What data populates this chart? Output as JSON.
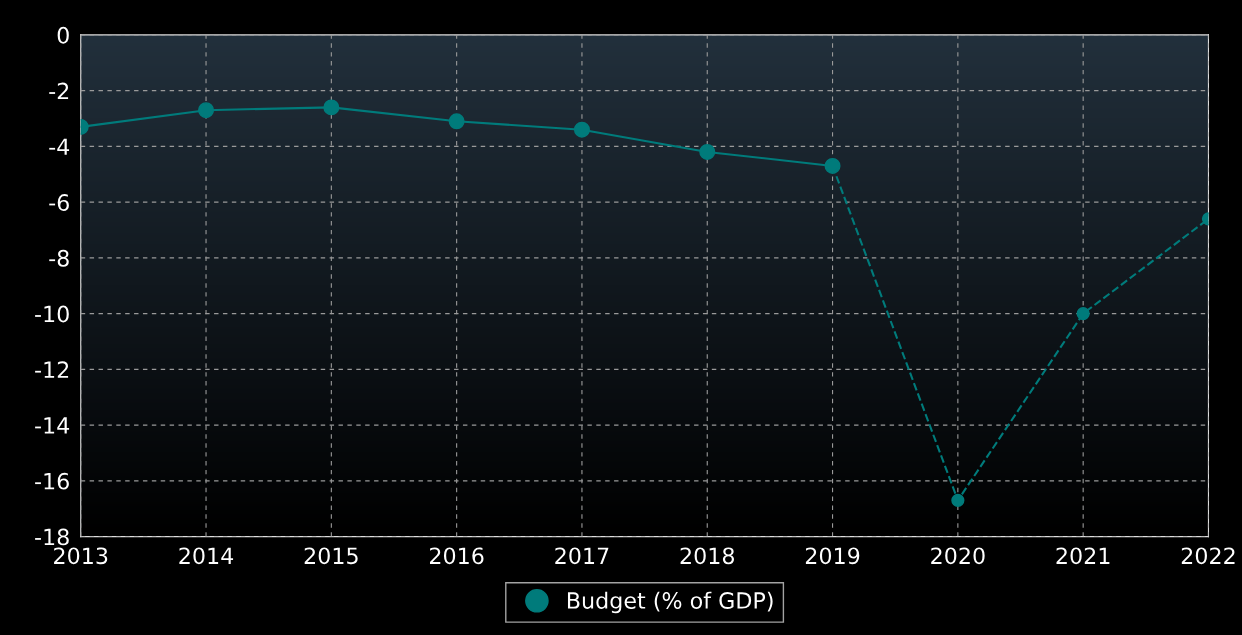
{
  "chart_data": {
    "type": "line",
    "x": [
      2013,
      2014,
      2015,
      2016,
      2017,
      2018,
      2019,
      2020,
      2021,
      2022
    ],
    "series": [
      {
        "name": "Budget (% of GDP)",
        "color": "#007b7b",
        "values": [
          -3.3,
          -2.7,
          -2.6,
          -3.1,
          -3.4,
          -4.2,
          -4.7,
          null,
          null,
          null
        ],
        "line_style": "solid"
      },
      {
        "color": "#007b7b",
        "values": [
          null,
          null,
          null,
          null,
          null,
          null,
          -4.7,
          -16.7,
          -10.0,
          -6.6
        ],
        "line_style": "dashed"
      }
    ],
    "xlim": [
      2013,
      2022
    ],
    "xticks": [
      2013,
      2014,
      2015,
      2016,
      2017,
      2018,
      2019,
      2020,
      2021,
      2022
    ],
    "ylim": [
      -18,
      0
    ],
    "yticks": [
      -18,
      -16,
      -14,
      -12,
      -10,
      -8,
      -6,
      -4,
      -2,
      0
    ],
    "grid": true,
    "legend": "bottom",
    "marker": "circle"
  }
}
